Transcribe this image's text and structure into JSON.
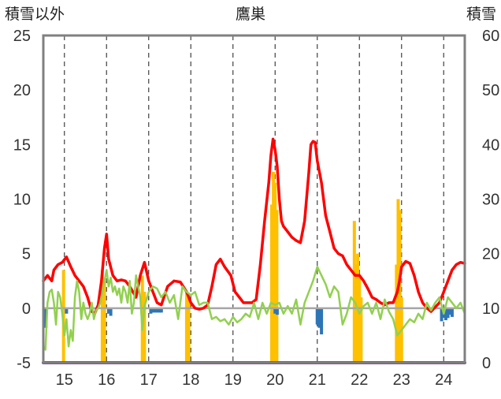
{
  "chart_data": {
    "type": "line",
    "title": "鷹巣",
    "left_axis_label": "積雪以外",
    "right_axis_label": "積雪",
    "x_tick_labels": [
      "15",
      "16",
      "17",
      "18",
      "19",
      "20",
      "21",
      "22",
      "23",
      "24"
    ],
    "x_range": [
      14.5,
      24.5
    ],
    "y_left": {
      "range": [
        -5,
        25
      ],
      "ticks": [
        -5,
        0,
        5,
        10,
        15,
        20,
        25
      ]
    },
    "y_right": {
      "range": [
        0,
        60
      ],
      "ticks": [
        0,
        10,
        20,
        30,
        40,
        50,
        60
      ]
    },
    "grid": {
      "vertical": "dashed",
      "horizontal": "none"
    },
    "colors": {
      "red_line": "#ff0000",
      "green_line": "#92d050",
      "orange_bars": "#ffc000",
      "blue_bars": "#2e75b6",
      "purple_line": "#7030a0",
      "frame": "#808080",
      "grid": "#404040"
    },
    "series": [
      {
        "type": "line",
        "axis": "left",
        "color": "#ff0000",
        "x": [
          14.5,
          14.6,
          14.7,
          14.75,
          14.85,
          14.95,
          15.05,
          15.15,
          15.25,
          15.35,
          15.45,
          15.55,
          15.65,
          15.72,
          15.8,
          15.88,
          15.95,
          16.0,
          16.05,
          16.15,
          16.25,
          16.35,
          16.45,
          16.55,
          16.7,
          16.8,
          16.9,
          17.0,
          17.1,
          17.2,
          17.3,
          17.45,
          17.6,
          17.75,
          17.9,
          18.0,
          18.1,
          18.2,
          18.3,
          18.4,
          18.5,
          18.6,
          18.7,
          18.8,
          18.95,
          19.05,
          19.15,
          19.25,
          19.35,
          19.45,
          19.55,
          19.65,
          19.75,
          19.85,
          19.9,
          19.95,
          20.0,
          20.05,
          20.1,
          20.15,
          20.2,
          20.3,
          20.4,
          20.5,
          20.6,
          20.7,
          20.8,
          20.85,
          20.9,
          20.95,
          21.0,
          21.1,
          21.2,
          21.3,
          21.4,
          21.5,
          21.6,
          21.7,
          21.8,
          21.9,
          22.0,
          22.1,
          22.2,
          22.3,
          22.4,
          22.5,
          22.6,
          22.7,
          22.8,
          22.85,
          22.9,
          22.95,
          23.0,
          23.1,
          23.2,
          23.3,
          23.4,
          23.5,
          23.6,
          23.7,
          23.8,
          23.9,
          24.0,
          24.1,
          24.2,
          24.3,
          24.4,
          24.5
        ],
        "y": [
          2.5,
          3.0,
          2.5,
          3.5,
          4.0,
          4.2,
          4.7,
          3.8,
          3.0,
          2.5,
          2.0,
          1.0,
          -0.3,
          -0.5,
          0.3,
          2.5,
          5.5,
          6.8,
          4.5,
          3.0,
          2.5,
          2.6,
          2.5,
          2.0,
          1.0,
          3.0,
          4.2,
          2.5,
          1.5,
          0.5,
          0.3,
          2.0,
          2.5,
          2.4,
          1.5,
          0.5,
          0.0,
          -0.1,
          0.0,
          0.3,
          2.0,
          4.0,
          4.5,
          3.8,
          3.0,
          1.5,
          1.0,
          0.5,
          0.5,
          0.5,
          0.8,
          4.0,
          8.0,
          11.5,
          14.0,
          15.5,
          14.5,
          13.0,
          10.0,
          8.0,
          7.5,
          7.0,
          6.5,
          6.2,
          6.0,
          8.0,
          12.5,
          15.0,
          15.3,
          15.2,
          13.5,
          11.5,
          8.5,
          7.0,
          5.5,
          5.0,
          4.8,
          4.0,
          3.5,
          3.0,
          3.0,
          2.5,
          1.8,
          1.0,
          0.8,
          0.5,
          0.3,
          0.5,
          0.5,
          1.0,
          1.5,
          2.5,
          3.8,
          4.3,
          4.1,
          3.0,
          1.5,
          0.5,
          0.0,
          -0.3,
          0.1,
          0.5,
          1.5,
          2.5,
          3.5,
          4.0,
          4.2,
          4.1
        ]
      },
      {
        "type": "line",
        "axis": "left",
        "color": "#92d050",
        "x": [
          14.5,
          14.55,
          14.6,
          14.65,
          14.7,
          14.75,
          14.8,
          14.85,
          14.9,
          14.95,
          15.0,
          15.05,
          15.1,
          15.15,
          15.2,
          15.25,
          15.3,
          15.35,
          15.4,
          15.45,
          15.5,
          15.55,
          15.6,
          15.65,
          15.7,
          15.75,
          15.8,
          15.85,
          15.9,
          15.95,
          16.0,
          16.05,
          16.1,
          16.15,
          16.2,
          16.25,
          16.3,
          16.35,
          16.4,
          16.45,
          16.5,
          16.55,
          16.6,
          16.65,
          16.7,
          16.75,
          16.8,
          16.85,
          16.9,
          16.95,
          17.0,
          17.1,
          17.2,
          17.3,
          17.4,
          17.5,
          17.6,
          17.7,
          17.8,
          17.9,
          18.0,
          18.1,
          18.2,
          18.3,
          18.4,
          18.5,
          18.6,
          18.7,
          18.8,
          18.9,
          19.0,
          19.1,
          19.2,
          19.3,
          19.4,
          19.5,
          19.6,
          19.7,
          19.8,
          19.9,
          20.0,
          20.1,
          20.2,
          20.3,
          20.4,
          20.5,
          20.6,
          20.7,
          20.8,
          20.9,
          21.0,
          21.1,
          21.2,
          21.3,
          21.4,
          21.5,
          21.6,
          21.7,
          21.8,
          21.9,
          22.0,
          22.1,
          22.2,
          22.3,
          22.4,
          22.5,
          22.6,
          22.7,
          22.8,
          22.9,
          23.0,
          23.1,
          23.2,
          23.3,
          23.4,
          23.5,
          23.6,
          23.7,
          23.8,
          23.9,
          24.0,
          24.1,
          24.2,
          24.3,
          24.4,
          24.5
        ],
        "y": [
          -3.5,
          -3.8,
          0.5,
          1.5,
          1.7,
          0.5,
          -1.5,
          1.5,
          1.0,
          -0.5,
          -2.5,
          -1.0,
          -3.5,
          -2.0,
          -3.0,
          1.0,
          2.5,
          1.5,
          -1.0,
          0.5,
          -0.5,
          -1.0,
          -0.5,
          0.5,
          -1.0,
          -0.2,
          0.0,
          0.5,
          1.5,
          2.5,
          3.5,
          2.0,
          2.8,
          1.5,
          2.0,
          1.2,
          1.8,
          0.5,
          2.0,
          1.5,
          0.5,
          2.5,
          -0.5,
          0.5,
          3.0,
          2.0,
          1.0,
          -2.0,
          0.2,
          0.8,
          1.5,
          2.0,
          1.8,
          1.0,
          1.5,
          0.5,
          1.2,
          -1.0,
          2.0,
          1.5,
          1.2,
          1.5,
          0.3,
          0.5,
          0.5,
          -1.0,
          -0.8,
          -1.2,
          -1.0,
          -1.5,
          -0.8,
          -1.3,
          -1.0,
          -0.5,
          -0.8,
          0.5,
          -1.0,
          0.5,
          -0.5,
          0.5,
          0.3,
          0.5,
          -0.5,
          0.2,
          -0.5,
          0.8,
          -1.5,
          0.5,
          1.5,
          2.5,
          3.8,
          3.0,
          2.2,
          1.0,
          2.0,
          1.5,
          -1.5,
          -0.5,
          1.0,
          0.5,
          -0.5,
          0.2,
          0.5,
          -0.5,
          0.5,
          -1.0,
          0.8,
          -0.3,
          -1.0,
          -2.5,
          -2.0,
          -1.5,
          -1.0,
          -1.3,
          -0.5,
          -1.0,
          0.5,
          -0.2,
          0.5,
          1.0,
          -0.5,
          1.0,
          0.5,
          0.0,
          0.5,
          -0.5
        ]
      },
      {
        "type": "bar",
        "axis": "right",
        "color": "#ffc000",
        "x": [
          14.98,
          15.9,
          15.95,
          16.85,
          16.9,
          17.9,
          17.95,
          19.92,
          19.96,
          20.0,
          20.04,
          21.88,
          21.92,
          21.96,
          22.0,
          22.04,
          22.88,
          22.92,
          22.96,
          23.0
        ],
        "y": [
          17,
          17,
          15,
          16,
          13,
          13,
          12,
          29,
          35,
          33,
          28,
          26,
          18,
          20,
          16,
          12,
          18,
          30,
          28,
          12
        ]
      },
      {
        "type": "bar",
        "axis": "left",
        "color": "#2e75b6",
        "x": [
          14.52,
          14.56,
          15.05,
          16.05,
          16.1,
          17.05,
          17.1,
          17.15,
          17.2,
          17.25,
          17.3,
          20.0,
          20.05,
          21.0,
          21.05,
          21.1,
          23.95,
          24.0,
          24.05,
          24.1,
          24.15,
          24.2
        ],
        "y": [
          -1.0,
          -1.8,
          -0.5,
          -0.5,
          -0.7,
          -0.5,
          -0.4,
          -0.4,
          -0.4,
          -0.4,
          -0.4,
          -0.5,
          -0.6,
          -1.5,
          -1.8,
          -2.4,
          -1.2,
          -0.8,
          -1.1,
          -0.9,
          -0.6,
          -0.8
        ]
      },
      {
        "type": "line",
        "axis": "left",
        "color": "#7030a0",
        "x": [
          14.5,
          24.5
        ],
        "y": [
          -5,
          -5
        ]
      }
    ]
  }
}
